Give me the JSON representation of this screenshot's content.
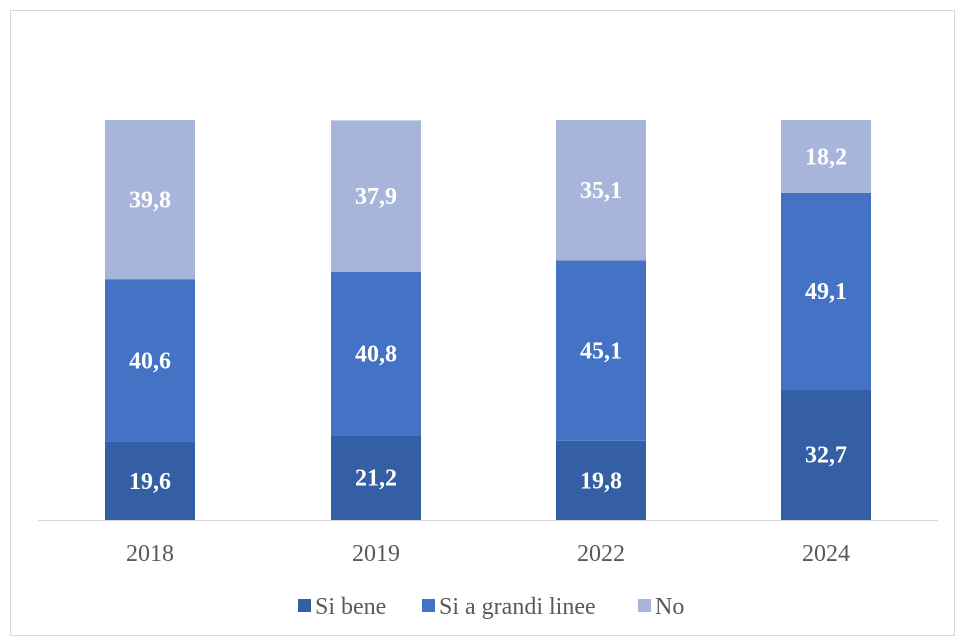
{
  "chart_data": {
    "type": "bar",
    "stacked": true,
    "categories": [
      "2018",
      "2019",
      "2022",
      "2024"
    ],
    "series": [
      {
        "name": "Si bene",
        "values": [
          19.6,
          21.2,
          19.8,
          32.7
        ],
        "color": "#355fa5"
      },
      {
        "name": "Si a grandi linee",
        "values": [
          40.6,
          40.8,
          45.1,
          49.1
        ],
        "color": "#4472c4"
      },
      {
        "name": "No",
        "values": [
          39.8,
          37.9,
          35.1,
          18.2
        ],
        "color": "#a8b5da"
      }
    ],
    "data_labels": true,
    "ylim": [
      0,
      100
    ],
    "grid": false,
    "legend_position": "bottom",
    "axis_color": "#d9d9d9"
  }
}
